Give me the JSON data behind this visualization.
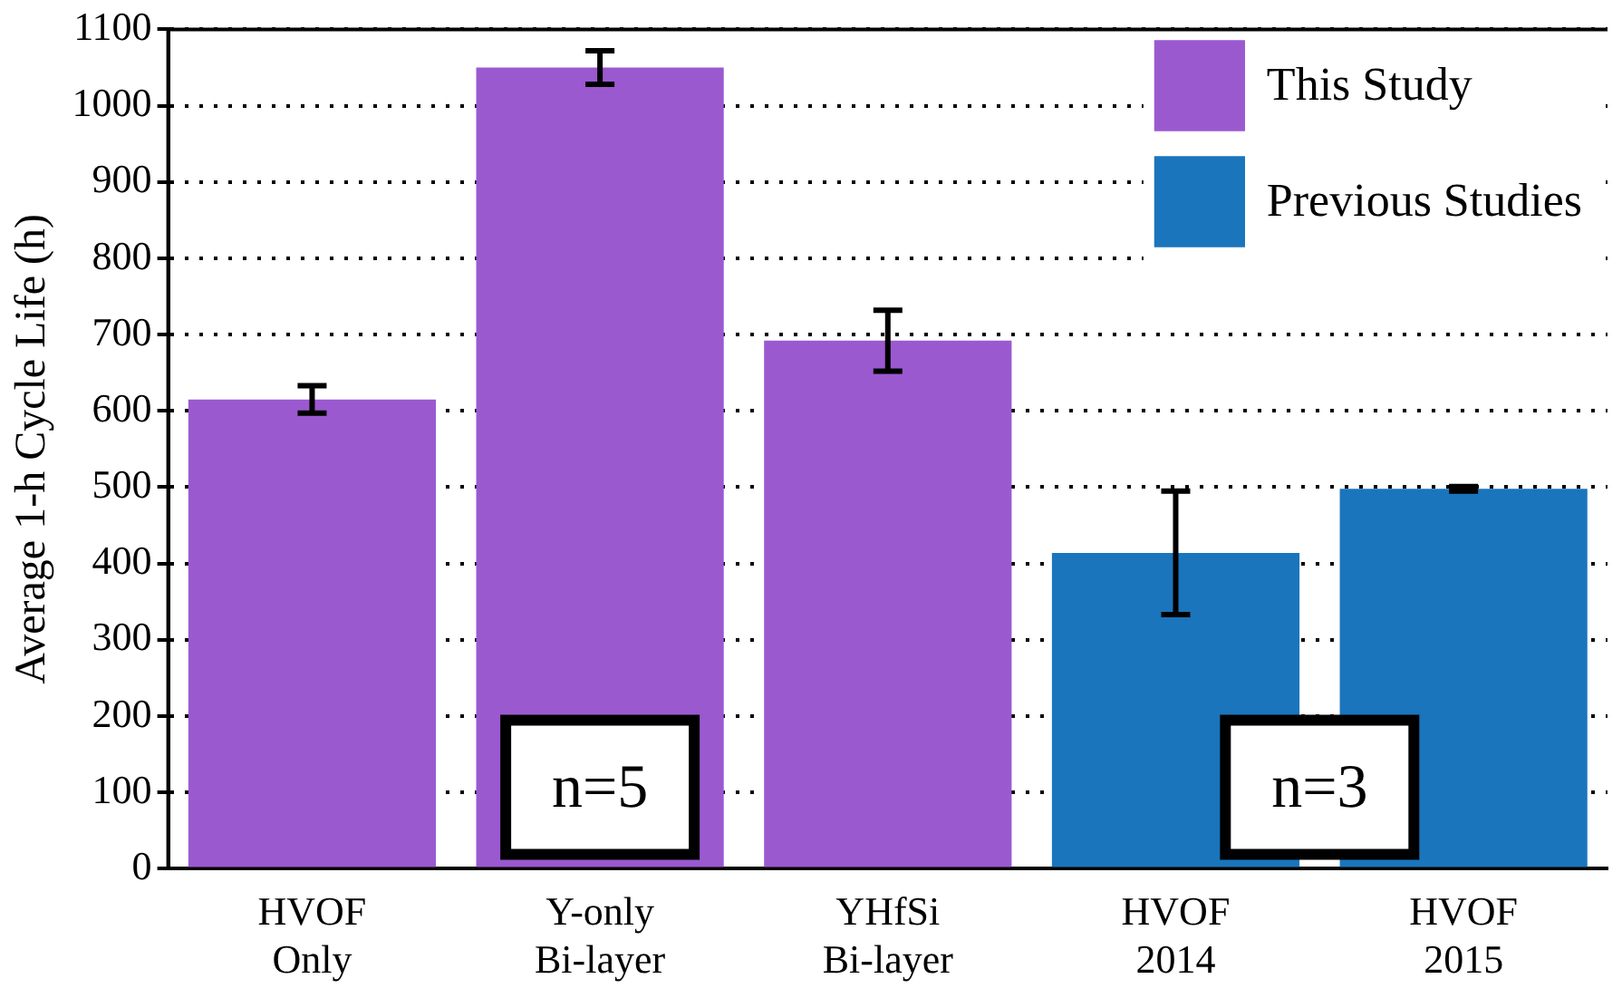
{
  "chart_data": {
    "type": "bar",
    "ylabel": "Average 1-h Cycle Life (h)",
    "categories": [
      "HVOF Only",
      "Y-only Bi-layer",
      "YHfSi Bi-layer",
      "HVOF 2014",
      "HVOF 2015"
    ],
    "series": [
      {
        "name": "This Study",
        "color": "#9b59d0",
        "values": [
          615,
          1050,
          692,
          null,
          null
        ],
        "errors": [
          18,
          22,
          40,
          null,
          null
        ]
      },
      {
        "name": "Previous Studies",
        "color": "#1a75bc",
        "values": [
          null,
          null,
          null,
          414,
          498
        ],
        "errors": [
          null,
          null,
          null,
          81,
          3
        ]
      }
    ],
    "ylim": [
      0,
      1100
    ],
    "yticks": [
      0,
      100,
      200,
      300,
      400,
      500,
      600,
      700,
      800,
      900,
      1000,
      1100
    ],
    "grid": "y",
    "legend": "top right",
    "annotations": [
      "n=5",
      "n=3"
    ]
  }
}
